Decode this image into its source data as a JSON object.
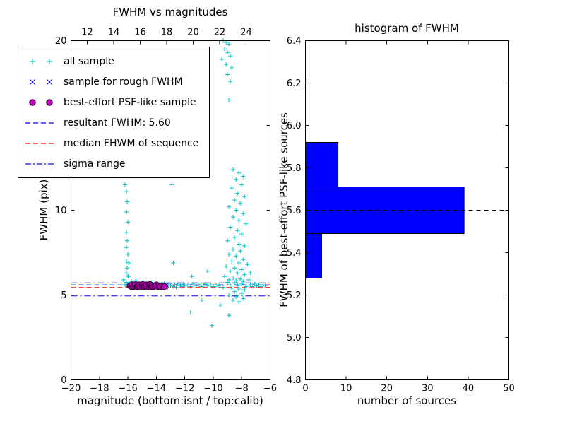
{
  "figure": {
    "background": "#ffffff"
  },
  "chart_data": [
    {
      "type": "scatter",
      "title": "FWHM vs magnitudes",
      "xlabel": "magnitude (bottom:isnt / top:calib)",
      "ylabel": "FWHM (pix)",
      "xlim": [
        -20,
        -6
      ],
      "ylim": [
        0,
        20
      ],
      "x_ticks": [
        -20,
        -18,
        -16,
        -14,
        -12,
        -10,
        -8,
        -6
      ],
      "x_tick_labels": [
        "−20",
        "−18",
        "−16",
        "−14",
        "−12",
        "−10",
        "−8",
        "−6"
      ],
      "y_ticks": [
        0,
        5,
        10,
        15,
        20
      ],
      "y_tick_labels": [
        "0",
        "5",
        "10",
        "15",
        "20"
      ],
      "top_axis": {
        "ticks": [
          12,
          14,
          16,
          18,
          20,
          22,
          24
        ],
        "tick_labels": [
          "12",
          "14",
          "16",
          "18",
          "20",
          "22",
          "24"
        ],
        "xlim": [
          10.77,
          25.81
        ]
      },
      "grid": false,
      "legend_position": "upper left",
      "hlines": [
        {
          "name": "sigma range upper",
          "value": 5.72,
          "style": "dashdot",
          "color": "#0000ff"
        },
        {
          "name": "resultant FWHM",
          "value": 5.6,
          "style": "dashed",
          "color": "#0000ff"
        },
        {
          "name": "median FWHM of sequence",
          "value": 5.45,
          "style": "dashed",
          "color": "#ff0000"
        },
        {
          "name": "sigma range lower",
          "value": 4.95,
          "style": "dashdot",
          "color": "#0000ff"
        }
      ],
      "series": [
        {
          "name": "all sample",
          "marker": "plus",
          "color": "#00bfbf",
          "points": [
            [
              -16.3,
              5.9
            ],
            [
              -16.2,
              5.6
            ],
            [
              -16.1,
              5.75
            ],
            [
              -16.0,
              5.5
            ],
            [
              -15.95,
              6.1
            ],
            [
              -15.9,
              5.65
            ],
            [
              -15.8,
              5.45
            ],
            [
              -15.75,
              5.8
            ],
            [
              -15.7,
              5.55
            ],
            [
              -15.6,
              5.7
            ],
            [
              -15.5,
              5.5
            ],
            [
              -15.45,
              5.85
            ],
            [
              -15.4,
              5.6
            ],
            [
              -15.3,
              5.45
            ],
            [
              -15.25,
              5.7
            ],
            [
              -15.2,
              5.55
            ],
            [
              -15.1,
              5.65
            ],
            [
              -15.0,
              5.5
            ],
            [
              -14.95,
              5.75
            ],
            [
              -14.9,
              5.55
            ],
            [
              -14.8,
              5.65
            ],
            [
              -14.7,
              5.45
            ],
            [
              -14.65,
              5.7
            ],
            [
              -14.6,
              5.55
            ],
            [
              -14.5,
              5.6
            ],
            [
              -14.4,
              5.5
            ],
            [
              -14.35,
              5.75
            ],
            [
              -14.3,
              5.6
            ],
            [
              -14.2,
              5.45
            ],
            [
              -14.1,
              5.65
            ],
            [
              -14.0,
              5.55
            ],
            [
              -13.95,
              5.7
            ],
            [
              -13.9,
              5.5
            ],
            [
              -13.8,
              5.6
            ],
            [
              -13.7,
              5.45
            ],
            [
              -13.6,
              5.65
            ],
            [
              -13.5,
              5.55
            ],
            [
              -13.45,
              5.7
            ],
            [
              -13.4,
              5.5
            ],
            [
              -13.3,
              5.6
            ],
            [
              -13.2,
              5.45
            ],
            [
              -13.1,
              5.65
            ],
            [
              -13.0,
              5.55
            ],
            [
              -12.9,
              5.7
            ],
            [
              -12.8,
              5.5
            ],
            [
              -12.7,
              5.6
            ],
            [
              -12.6,
              5.45
            ],
            [
              -12.5,
              5.65
            ],
            [
              -12.4,
              5.55
            ],
            [
              -12.3,
              5.6
            ],
            [
              -12.2,
              5.5
            ],
            [
              -12.1,
              5.65
            ],
            [
              -12.0,
              5.55
            ],
            [
              -11.8,
              5.6
            ],
            [
              -11.6,
              5.5
            ],
            [
              -11.4,
              5.65
            ],
            [
              -11.2,
              5.55
            ],
            [
              -11.0,
              5.6
            ],
            [
              -10.8,
              5.5
            ],
            [
              -10.6,
              5.65
            ],
            [
              -10.4,
              5.55
            ],
            [
              -10.2,
              5.6
            ],
            [
              -10.0,
              5.5
            ],
            [
              -9.8,
              5.6
            ],
            [
              -9.6,
              5.55
            ],
            [
              -7.4,
              5.6
            ],
            [
              -7.25,
              5.5
            ],
            [
              -7.1,
              5.65
            ],
            [
              -6.95,
              5.55
            ],
            [
              -6.8,
              5.6
            ],
            [
              -6.65,
              5.5
            ],
            [
              -6.5,
              5.6
            ],
            [
              -6.35,
              5.55
            ],
            [
              -16.1,
              6.3
            ],
            [
              -16.05,
              6.6
            ],
            [
              -16.1,
              7.0
            ],
            [
              -16.0,
              7.4
            ],
            [
              -16.1,
              7.8
            ],
            [
              -16.05,
              8.2
            ],
            [
              -16.1,
              8.7
            ],
            [
              -16.0,
              9.3
            ],
            [
              -16.1,
              9.9
            ],
            [
              -16.05,
              10.5
            ],
            [
              -16.1,
              11.1
            ],
            [
              -16.2,
              11.5
            ],
            [
              -15.95,
              6.9
            ],
            [
              -16.0,
              6.1
            ],
            [
              -12.9,
              11.5
            ],
            [
              -12.8,
              6.9
            ],
            [
              -11.5,
              6.1
            ],
            [
              -10.4,
              6.4
            ],
            [
              -8.6,
              12.4
            ],
            [
              -8.2,
              12.2
            ],
            [
              -7.9,
              12.0
            ],
            [
              -8.4,
              11.8
            ],
            [
              -8.0,
              11.5
            ],
            [
              -8.7,
              11.3
            ],
            [
              -8.3,
              11.0
            ],
            [
              -7.8,
              10.8
            ],
            [
              -8.5,
              10.6
            ],
            [
              -8.1,
              10.4
            ],
            [
              -8.9,
              10.2
            ],
            [
              -8.4,
              10.0
            ],
            [
              -7.9,
              9.8
            ],
            [
              -8.6,
              9.6
            ],
            [
              -8.2,
              9.4
            ],
            [
              -7.7,
              9.2
            ],
            [
              -8.8,
              9.0
            ],
            [
              -8.3,
              8.8
            ],
            [
              -8.0,
              8.6
            ],
            [
              -8.5,
              8.4
            ],
            [
              -9.0,
              8.2
            ],
            [
              -8.2,
              8.0
            ],
            [
              -7.8,
              7.9
            ],
            [
              -8.6,
              7.7
            ],
            [
              -8.1,
              7.6
            ],
            [
              -8.9,
              7.4
            ],
            [
              -8.4,
              7.3
            ],
            [
              -7.9,
              7.1
            ],
            [
              -8.7,
              7.0
            ],
            [
              -8.2,
              6.9
            ],
            [
              -7.6,
              6.8
            ],
            [
              -9.1,
              6.7
            ],
            [
              -8.5,
              6.6
            ],
            [
              -8.0,
              6.5
            ],
            [
              -8.8,
              6.4
            ],
            [
              -8.3,
              6.3
            ],
            [
              -7.8,
              6.2
            ],
            [
              -9.2,
              6.1
            ],
            [
              -8.6,
              6.0
            ],
            [
              -8.1,
              5.95
            ],
            [
              -8.9,
              5.9
            ],
            [
              -8.4,
              5.85
            ],
            [
              -7.9,
              5.8
            ],
            [
              -9.0,
              5.75
            ],
            [
              -8.5,
              5.7
            ],
            [
              -8.0,
              5.65
            ],
            [
              -8.8,
              5.6
            ],
            [
              -8.3,
              5.55
            ],
            [
              -7.7,
              5.5
            ],
            [
              -9.3,
              5.45
            ],
            [
              -8.7,
              5.4
            ],
            [
              -8.2,
              5.35
            ],
            [
              -7.8,
              5.3
            ],
            [
              -8.5,
              5.2
            ],
            [
              -8.0,
              5.1
            ],
            [
              -8.9,
              5.0
            ],
            [
              -8.4,
              4.9
            ],
            [
              -7.9,
              4.8
            ],
            [
              -8.6,
              4.7
            ],
            [
              -8.2,
              4.6
            ],
            [
              -7.5,
              5.9
            ],
            [
              -7.4,
              6.3
            ],
            [
              -11.6,
              4.0
            ],
            [
              -10.8,
              4.7
            ],
            [
              -10.1,
              3.2
            ],
            [
              -9.5,
              4.4
            ],
            [
              -8.9,
              3.8
            ],
            [
              -9.3,
              20.0
            ],
            [
              -9.1,
              19.9
            ],
            [
              -8.9,
              19.8
            ],
            [
              -9.2,
              19.5
            ],
            [
              -9.0,
              19.3
            ],
            [
              -8.8,
              19.1
            ],
            [
              -9.4,
              18.9
            ],
            [
              -9.1,
              18.6
            ],
            [
              -8.7,
              18.4
            ],
            [
              -9.0,
              18.0
            ],
            [
              -8.8,
              17.6
            ],
            [
              -8.9,
              16.5
            ]
          ]
        },
        {
          "name": "sample for rough FWHM",
          "marker": "x",
          "color": "#0000ff",
          "points": [
            [
              -15.4,
              5.55
            ],
            [
              -15.1,
              5.6
            ],
            [
              -14.8,
              5.5
            ],
            [
              -14.5,
              5.6
            ],
            [
              -14.2,
              5.55
            ],
            [
              -13.9,
              5.6
            ],
            [
              -13.6,
              5.5
            ],
            [
              -13.3,
              5.6
            ]
          ]
        },
        {
          "name": "best-effort PSF-like sample",
          "marker": "circle",
          "color": "#bf00bf",
          "edge_color": "#2a002a",
          "points": [
            [
              -15.85,
              5.55
            ],
            [
              -15.75,
              5.5
            ],
            [
              -15.7,
              5.6
            ],
            [
              -15.6,
              5.5
            ],
            [
              -15.5,
              5.55
            ],
            [
              -15.45,
              5.62
            ],
            [
              -15.35,
              5.5
            ],
            [
              -15.3,
              5.56
            ],
            [
              -15.2,
              5.6
            ],
            [
              -15.1,
              5.5
            ],
            [
              -15.0,
              5.55
            ],
            [
              -14.95,
              5.62
            ],
            [
              -14.85,
              5.5
            ],
            [
              -14.8,
              5.56
            ],
            [
              -14.7,
              5.6
            ],
            [
              -14.6,
              5.5
            ],
            [
              -14.5,
              5.55
            ],
            [
              -14.45,
              5.62
            ],
            [
              -14.35,
              5.5
            ],
            [
              -14.3,
              5.56
            ],
            [
              -14.2,
              5.5
            ],
            [
              -14.1,
              5.55
            ],
            [
              -14.0,
              5.6
            ],
            [
              -13.9,
              5.5
            ],
            [
              -13.8,
              5.55
            ],
            [
              -13.7,
              5.5
            ],
            [
              -13.55,
              5.55
            ],
            [
              -13.45,
              5.5
            ]
          ]
        }
      ],
      "legend": {
        "items": [
          {
            "label": "all sample",
            "marker": "plus",
            "color": "#00bfbf"
          },
          {
            "label": "sample for rough FWHM",
            "marker": "x",
            "color": "#0000ff"
          },
          {
            "label": "best-effort PSF-like sample",
            "marker": "circle",
            "color": "#bf00bf",
            "edge": "#2a002a"
          },
          {
            "label": "resultant FWHM: 5.60",
            "marker": "dashed",
            "color": "#0000ff"
          },
          {
            "label": "median FHWM of sequence",
            "marker": "dashed",
            "color": "#ff0000"
          },
          {
            "label": "sigma range",
            "marker": "dashdot",
            "color": "#0000ff"
          }
        ]
      }
    },
    {
      "type": "bar",
      "orientation": "horizontal",
      "title": "histogram of FWHM",
      "xlabel": "number of sources",
      "ylabel": "FWHM of best-effort PSF-like sources",
      "xlim": [
        0,
        50
      ],
      "ylim": [
        4.8,
        6.4
      ],
      "x_ticks": [
        0,
        10,
        20,
        30,
        40,
        50
      ],
      "x_tick_labels": [
        "0",
        "10",
        "20",
        "30",
        "40",
        "50"
      ],
      "y_ticks": [
        4.8,
        5.0,
        5.2,
        5.4,
        5.6,
        5.8,
        6.0,
        6.2,
        6.4
      ],
      "y_tick_labels": [
        "4.8",
        "5.0",
        "5.2",
        "5.4",
        "5.6",
        "5.8",
        "6.0",
        "6.2",
        "6.4"
      ],
      "bin_edges": [
        5.28,
        5.49,
        5.71,
        5.92
      ],
      "counts": [
        4,
        39,
        8
      ],
      "bar_color": "#0000ff",
      "bar_edge_color": "#000000",
      "grid": false,
      "hline": {
        "name": "resultant FWHM",
        "value": 5.6,
        "style": "dashed",
        "color": "#000000"
      }
    }
  ]
}
